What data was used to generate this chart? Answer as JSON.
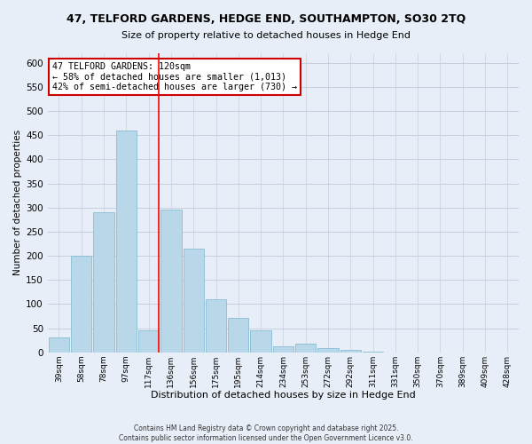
{
  "title": "47, TELFORD GARDENS, HEDGE END, SOUTHAMPTON, SO30 2TQ",
  "subtitle": "Size of property relative to detached houses in Hedge End",
  "xlabel": "Distribution of detached houses by size in Hedge End",
  "ylabel": "Number of detached properties",
  "bar_labels": [
    "39sqm",
    "58sqm",
    "78sqm",
    "97sqm",
    "117sqm",
    "136sqm",
    "156sqm",
    "175sqm",
    "195sqm",
    "214sqm",
    "234sqm",
    "253sqm",
    "272sqm",
    "292sqm",
    "311sqm",
    "331sqm",
    "350sqm",
    "370sqm",
    "389sqm",
    "409sqm",
    "428sqm"
  ],
  "bar_heights": [
    30,
    200,
    290,
    460,
    45,
    295,
    215,
    110,
    72,
    45,
    12,
    18,
    8,
    5,
    1,
    0,
    0,
    0,
    0,
    0,
    0
  ],
  "bar_color": "#b8d8ea",
  "bar_edge_color": "#8bbcd4",
  "vline_color": "red",
  "annotation_line1": "47 TELFORD GARDENS: 120sqm",
  "annotation_line2": "← 58% of detached houses are smaller (1,013)",
  "annotation_line3": "42% of semi-detached houses are larger (730) →",
  "annotation_box_color": "white",
  "annotation_box_edge": "#cc0000",
  "ylim": [
    0,
    620
  ],
  "yticks": [
    0,
    50,
    100,
    150,
    200,
    250,
    300,
    350,
    400,
    450,
    500,
    550,
    600
  ],
  "footer1": "Contains HM Land Registry data © Crown copyright and database right 2025.",
  "footer2": "Contains public sector information licensed under the Open Government Licence v3.0.",
  "background_color": "#e8eef8",
  "grid_color": "#c8d0e0",
  "title_fontsize": 9,
  "subtitle_fontsize": 8
}
